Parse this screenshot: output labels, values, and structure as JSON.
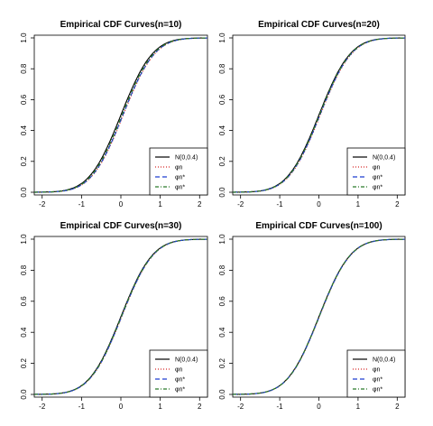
{
  "chart_data": [
    {
      "type": "line",
      "title": "Empirical CDF Curves(n=10)",
      "xlim": [
        -2.2,
        2.2
      ],
      "ylim": [
        0,
        1
      ],
      "xticks": [
        "-2",
        "-1",
        "0",
        "1",
        "2"
      ],
      "yticks": [
        "0.0",
        "0.2",
        "0.4",
        "0.6",
        "0.8",
        "1.0"
      ],
      "legend_position": "bottom-right",
      "series": [
        {
          "name": "N(0,0.4)",
          "color": "#000000",
          "style": "solid",
          "shift": 0.0
        },
        {
          "name": "φn",
          "color": "#d62728",
          "style": "dotted",
          "shift": 0.06
        },
        {
          "name": "φn*",
          "color": "#1f3fd0",
          "style": "dashed",
          "shift": 0.05
        },
        {
          "name": "φn*",
          "color": "#2a7a2a",
          "style": "dotdash",
          "shift": 0.03
        }
      ]
    },
    {
      "type": "line",
      "title": "Empirical CDF Curves(n=20)",
      "xlim": [
        -2.2,
        2.2
      ],
      "ylim": [
        0,
        1
      ],
      "xticks": [
        "-2",
        "-1",
        "0",
        "1",
        "2"
      ],
      "yticks": [
        "0.0",
        "0.2",
        "0.4",
        "0.6",
        "0.8",
        "1.0"
      ],
      "legend_position": "bottom-right",
      "series": [
        {
          "name": "N(0,0.4)",
          "color": "#000000",
          "style": "solid",
          "shift": 0.0
        },
        {
          "name": "φn",
          "color": "#d62728",
          "style": "dotted",
          "shift": 0.035
        },
        {
          "name": "φn*",
          "color": "#1f3fd0",
          "style": "dashed",
          "shift": 0.025
        },
        {
          "name": "φn*",
          "color": "#2a7a2a",
          "style": "dotdash",
          "shift": 0.015
        }
      ]
    },
    {
      "type": "line",
      "title": "Empirical CDF Curves(n=30)",
      "xlim": [
        -2.2,
        2.2
      ],
      "ylim": [
        0,
        1
      ],
      "xticks": [
        "-2",
        "-1",
        "0",
        "1",
        "2"
      ],
      "yticks": [
        "0.0",
        "0.2",
        "0.4",
        "0.6",
        "0.8",
        "1.0"
      ],
      "legend_position": "bottom-right",
      "series": [
        {
          "name": "N(0,0.4)",
          "color": "#000000",
          "style": "solid",
          "shift": 0.0
        },
        {
          "name": "φn",
          "color": "#d62728",
          "style": "dotted",
          "shift": 0.02
        },
        {
          "name": "φn*",
          "color": "#1f3fd0",
          "style": "dashed",
          "shift": 0.015
        },
        {
          "name": "φn*",
          "color": "#2a7a2a",
          "style": "dotdash",
          "shift": 0.01
        }
      ]
    },
    {
      "type": "line",
      "title": "Empirical CDF Curves(n=100)",
      "xlim": [
        -2.2,
        2.2
      ],
      "ylim": [
        0,
        1
      ],
      "xticks": [
        "-2",
        "-1",
        "0",
        "1",
        "2"
      ],
      "yticks": [
        "0.0",
        "0.2",
        "0.4",
        "0.6",
        "0.8",
        "1.0"
      ],
      "legend_position": "bottom-right",
      "series": [
        {
          "name": "N(0,0.4)",
          "color": "#000000",
          "style": "solid",
          "shift": 0.0
        },
        {
          "name": "φn",
          "color": "#d62728",
          "style": "dotted",
          "shift": 0.01
        },
        {
          "name": "φn*",
          "color": "#1f3fd0",
          "style": "dashed",
          "shift": 0.007
        },
        {
          "name": "φn*",
          "color": "#2a7a2a",
          "style": "dotdash",
          "shift": 0.004
        }
      ]
    }
  ]
}
